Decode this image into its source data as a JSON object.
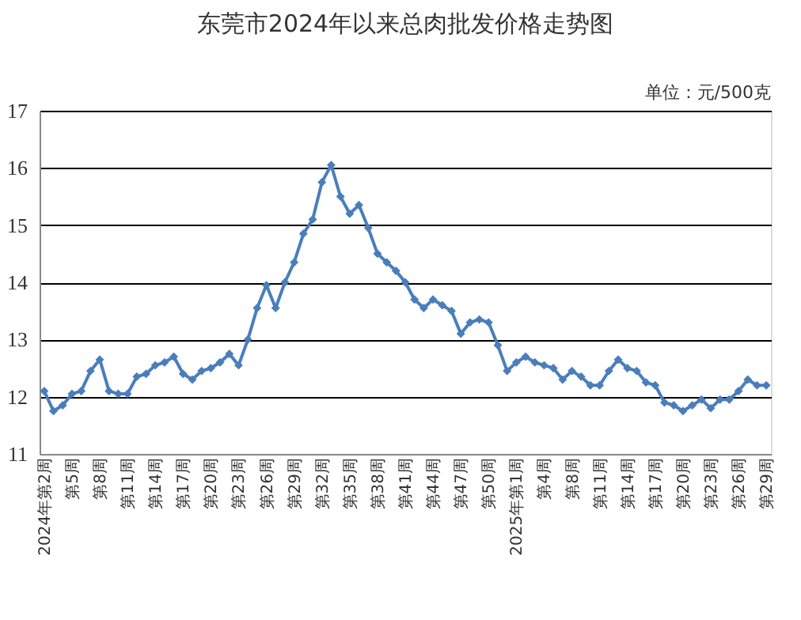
{
  "chart_data": {
    "type": "line",
    "title": "东莞市2024年以来总肉批发价格走势图",
    "annotations": [
      "单位：元/500克"
    ],
    "categories": [
      "2024年第2周",
      null,
      null,
      "第5周",
      null,
      null,
      "第8周",
      null,
      null,
      "第11周",
      null,
      null,
      "第14周",
      null,
      null,
      "第17周",
      null,
      null,
      "第20周",
      null,
      null,
      "第23周",
      null,
      null,
      "第26周",
      null,
      null,
      "第29周",
      null,
      null,
      "第32周",
      null,
      null,
      "第35周",
      null,
      null,
      "第38周",
      null,
      null,
      "第41周",
      null,
      null,
      "第44周",
      null,
      null,
      "第47周",
      null,
      null,
      "第50周",
      null,
      null,
      "2025年第1周",
      null,
      null,
      "第4周",
      null,
      null,
      "第8周",
      null,
      null,
      "第11周",
      null,
      null,
      "第14周",
      null,
      null,
      "第17周",
      null,
      null,
      "第20周",
      null,
      null,
      "第23周",
      null,
      null,
      "第26周",
      null,
      null,
      "第29周"
    ],
    "series": [
      {
        "color": "#4a7ebb",
        "values": [
          12.1,
          11.75,
          11.85,
          12.05,
          12.1,
          12.45,
          12.65,
          12.1,
          12.05,
          12.05,
          12.35,
          12.4,
          12.55,
          12.6,
          12.7,
          12.4,
          12.3,
          12.45,
          12.5,
          12.6,
          12.75,
          12.55,
          13.0,
          13.55,
          13.95,
          13.55,
          14.0,
          14.35,
          14.85,
          15.1,
          15.75,
          16.05,
          15.5,
          15.2,
          15.35,
          14.95,
          14.5,
          14.35,
          14.2,
          14.0,
          13.7,
          13.55,
          13.7,
          13.6,
          13.5,
          13.1,
          13.3,
          13.35,
          13.3,
          12.9,
          12.45,
          12.6,
          12.7,
          12.6,
          12.55,
          12.5,
          12.3,
          12.45,
          12.35,
          12.2,
          12.2,
          12.45,
          12.65,
          12.5,
          12.45,
          12.25,
          12.2,
          11.9,
          11.85,
          11.75,
          11.85,
          11.95,
          11.8,
          11.95,
          11.95,
          12.1,
          12.3,
          12.2,
          12.2
        ]
      }
    ],
    "ylim": [
      11,
      17
    ],
    "yticks": [
      11,
      12,
      13,
      14,
      15,
      16,
      17
    ],
    "grid": "y",
    "marker": "diamond",
    "line_style": "solid"
  }
}
